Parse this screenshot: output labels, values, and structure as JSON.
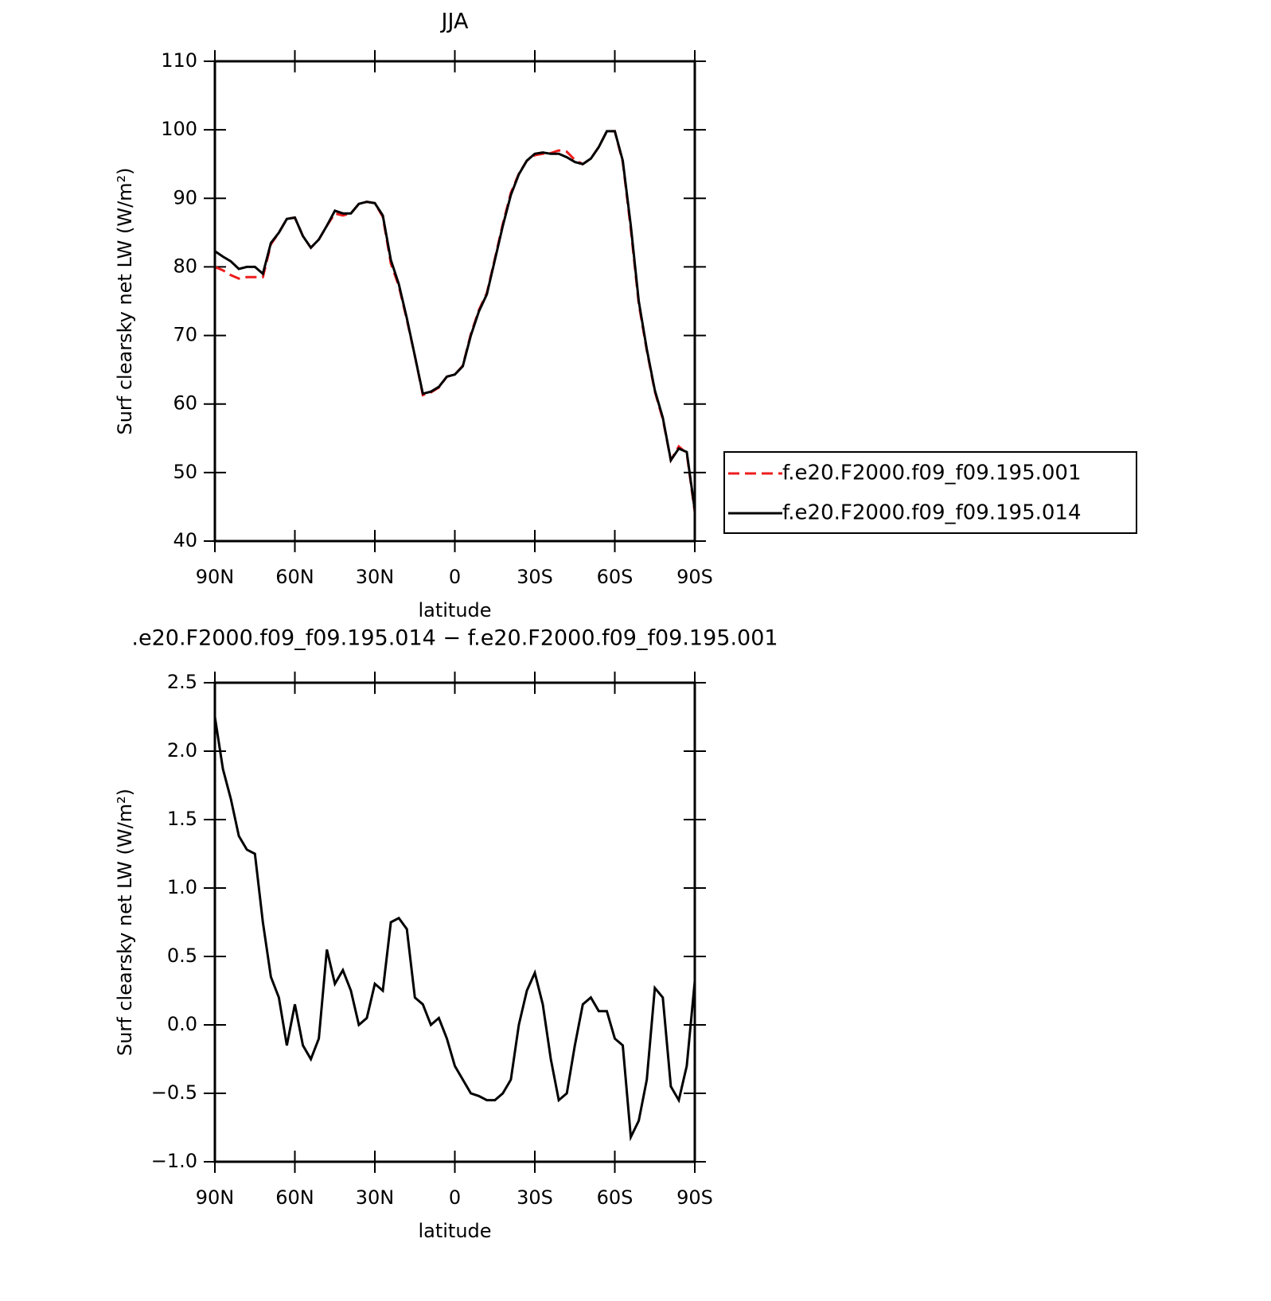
{
  "chart_data": [
    {
      "type": "line",
      "title": "JJA",
      "x_label": "latitude",
      "y_label": "Surf clearsky net LW (W/m²)",
      "x": [
        90,
        87,
        84,
        81,
        78,
        75,
        72,
        69,
        66,
        63,
        60,
        57,
        54,
        51,
        48,
        45,
        42,
        39,
        36,
        33,
        30,
        27,
        24,
        21,
        18,
        15,
        12,
        9,
        6,
        3,
        0,
        -3,
        -6,
        -9,
        -12,
        -15,
        -18,
        -21,
        -24,
        -27,
        -30,
        -33,
        -36,
        -39,
        -42,
        -45,
        -48,
        -51,
        -54,
        -57,
        -60,
        -63,
        -66,
        -69,
        -72,
        -75,
        -78,
        -81,
        -84,
        -87,
        -90
      ],
      "series": [
        {
          "name": "f.e20.F2000.f09_f09.195.001",
          "color": "#ee1c1c",
          "style": "dashed",
          "values": [
            80.0,
            79.5,
            78.8,
            78.3,
            78.5,
            78.5,
            78.5,
            83.3,
            85.0,
            87.0,
            87.2,
            84.5,
            82.8,
            84.0,
            86.0,
            87.8,
            87.5,
            87.8,
            89.2,
            89.5,
            89.3,
            87.3,
            80.5,
            77.2,
            72.3,
            67.0,
            61.3,
            61.7,
            62.4,
            64.0,
            64.3,
            65.6,
            70.2,
            73.7,
            76.2,
            81.2,
            86.3,
            90.8,
            93.6,
            95.5,
            96.3,
            96.5,
            96.6,
            97.0,
            96.8,
            95.6,
            95.0,
            95.8,
            97.5,
            99.8,
            99.8,
            95.3,
            85.5,
            74.6,
            67.8,
            61.8,
            57.8,
            51.8,
            53.8,
            52.8,
            44.2
          ]
        },
        {
          "name": "f.e20.F2000.f09_f09.195.014",
          "color": "#000000",
          "style": "solid",
          "values": [
            82.3,
            81.5,
            80.8,
            79.7,
            80.0,
            80.0,
            79.0,
            83.5,
            85.0,
            87.0,
            87.2,
            84.5,
            82.8,
            84.0,
            86.0,
            88.2,
            87.8,
            87.8,
            89.2,
            89.5,
            89.3,
            87.5,
            81.0,
            77.5,
            72.5,
            67.0,
            61.5,
            61.8,
            62.5,
            64.0,
            64.3,
            65.5,
            70.0,
            73.5,
            76.0,
            81.0,
            86.0,
            90.5,
            93.5,
            95.5,
            96.5,
            96.7,
            96.5,
            96.5,
            96.0,
            95.3,
            95.0,
            95.8,
            97.5,
            99.8,
            99.8,
            95.5,
            86.0,
            75.0,
            68.0,
            62.0,
            58.0,
            51.8,
            53.5,
            53.0,
            44.5
          ]
        }
      ],
      "xlim": [
        90,
        -90
      ],
      "xticks": [
        {
          "value": 90,
          "label": "90N"
        },
        {
          "value": 60,
          "label": "60N"
        },
        {
          "value": 30,
          "label": "30N"
        },
        0,
        {
          "value": -30,
          "label": "30S"
        },
        {
          "value": -60,
          "label": "60S"
        },
        {
          "value": -90,
          "label": "90S"
        }
      ],
      "ylim": [
        40,
        110
      ],
      "yticks": [
        40,
        50,
        60,
        70,
        80,
        90,
        100,
        110
      ],
      "legend": "outside-right"
    },
    {
      "type": "line",
      "title": ".e20.F2000.f09_f09.195.014 − f.e20.F2000.f09_f09.195.001",
      "x_label": "latitude",
      "y_label": "Surf clearsky net LW (W/m²)",
      "x": [
        90,
        87,
        84,
        81,
        78,
        75,
        72,
        69,
        66,
        63,
        60,
        57,
        54,
        51,
        48,
        45,
        42,
        39,
        36,
        33,
        30,
        27,
        24,
        21,
        18,
        15,
        12,
        9,
        6,
        3,
        0,
        -3,
        -6,
        -9,
        -12,
        -15,
        -18,
        -21,
        -24,
        -27,
        -30,
        -33,
        -36,
        -39,
        -42,
        -45,
        -48,
        -51,
        -54,
        -57,
        -60,
        -63,
        -66,
        -69,
        -72,
        -75,
        -78,
        -81,
        -84,
        -87,
        -90
      ],
      "series": [
        {
          "color": "#000000",
          "style": "solid",
          "values": [
            2.25,
            1.87,
            1.65,
            1.38,
            1.28,
            1.25,
            0.75,
            0.35,
            0.2,
            -0.15,
            0.15,
            -0.15,
            -0.25,
            -0.1,
            0.55,
            0.3,
            0.4,
            0.25,
            0.0,
            0.05,
            0.3,
            0.25,
            0.75,
            0.78,
            0.7,
            0.2,
            0.15,
            0.0,
            0.05,
            -0.1,
            -0.3,
            -0.4,
            -0.5,
            -0.52,
            -0.55,
            -0.55,
            -0.5,
            -0.4,
            0.0,
            0.25,
            0.38,
            0.15,
            -0.25,
            -0.55,
            -0.5,
            -0.15,
            0.15,
            0.2,
            0.1,
            0.1,
            -0.1,
            -0.15,
            -0.82,
            -0.7,
            -0.4,
            0.27,
            0.2,
            -0.45,
            -0.55,
            -0.3,
            0.32
          ]
        }
      ],
      "xlim": [
        90,
        -90
      ],
      "xticks": [
        {
          "value": 90,
          "label": "90N"
        },
        {
          "value": 60,
          "label": "60N"
        },
        {
          "value": 30,
          "label": "30N"
        },
        0,
        {
          "value": -30,
          "label": "30S"
        },
        {
          "value": -60,
          "label": "60S"
        },
        {
          "value": -90,
          "label": "90S"
        }
      ],
      "ylim": [
        -1.0,
        2.5
      ],
      "yticks": [
        {
          "value": -1.0,
          "label": "−1.0"
        },
        {
          "value": -0.5,
          "label": "−0.5"
        },
        {
          "value": 0,
          "label": "0.0"
        },
        {
          "value": 0.5,
          "label": "0.5"
        },
        {
          "value": 1.0,
          "label": "1.0"
        },
        {
          "value": 1.5,
          "label": "1.5"
        },
        {
          "value": 2.0,
          "label": "2.0"
        },
        {
          "value": 2.5,
          "label": "2.5"
        }
      ]
    }
  ]
}
